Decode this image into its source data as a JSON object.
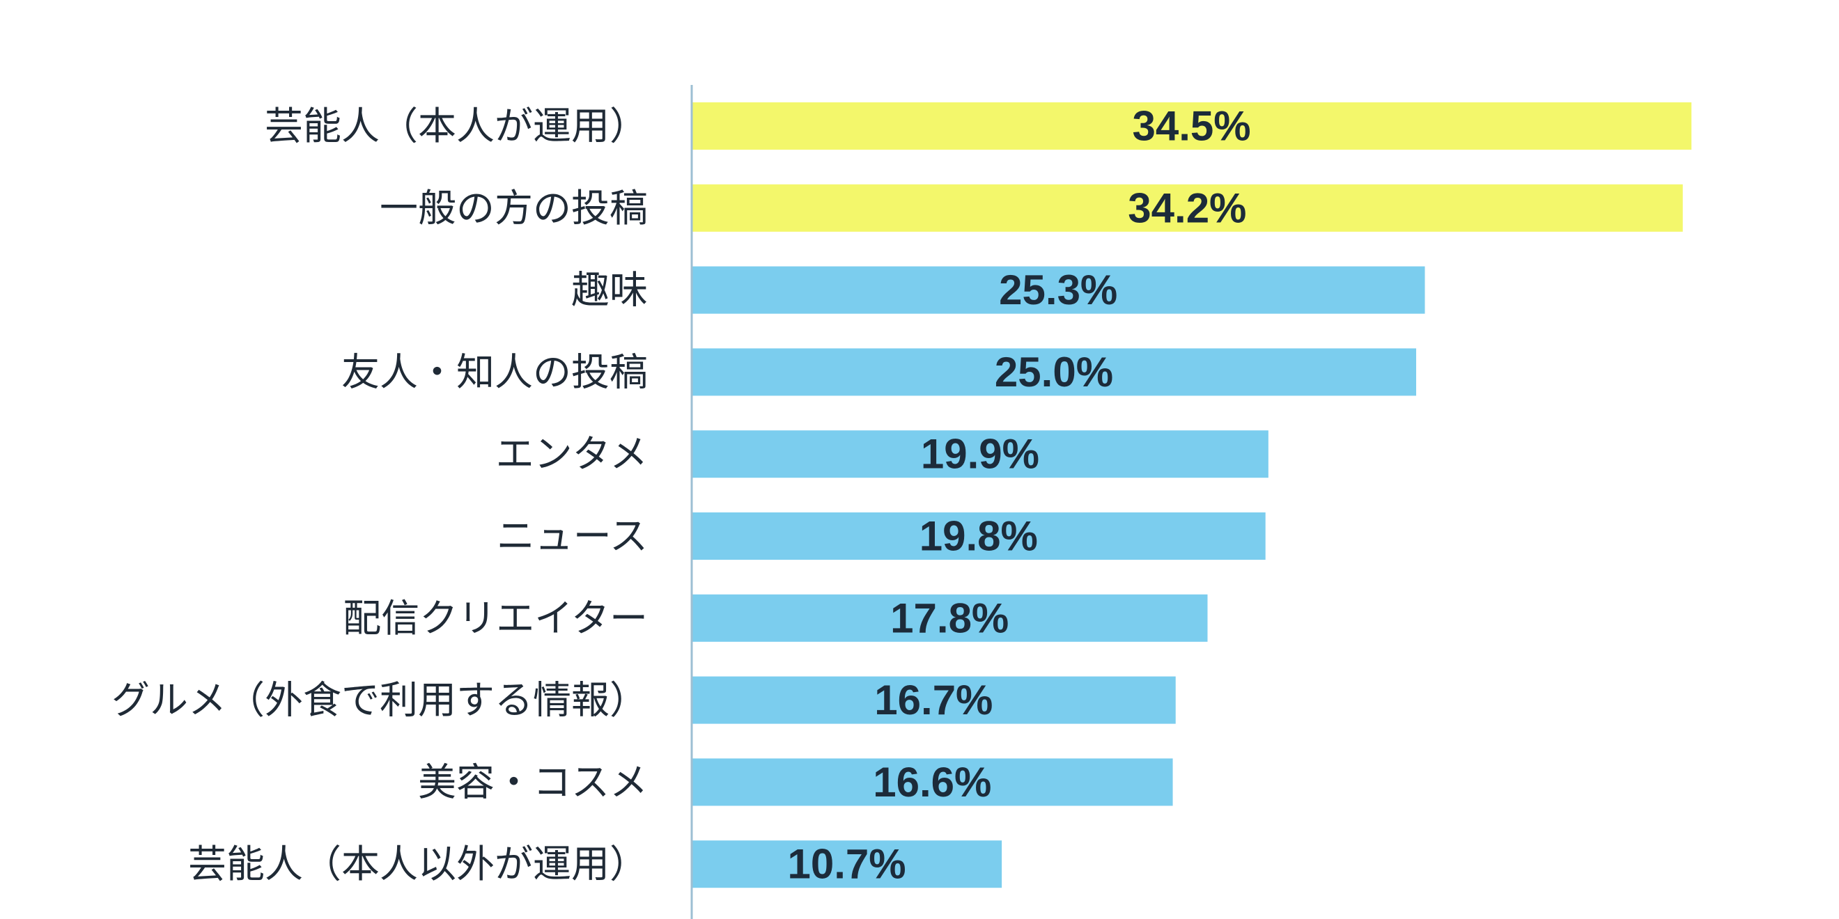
{
  "chart_data": {
    "type": "bar",
    "orientation": "horizontal",
    "title": "",
    "xlabel": "",
    "ylabel": "",
    "xlim": [
      0,
      35
    ],
    "grid": false,
    "legend": "none",
    "value_suffix": "%",
    "categories": [
      "芸能人（本人が運用）",
      "一般の方の投稿",
      "趣味",
      "友人・知人の投稿",
      "エンタメ",
      "ニュース",
      "配信クリエイター",
      "グルメ（外食で利用する情報）",
      "美容・コスメ",
      "芸能人（本人以外が運用）"
    ],
    "values": [
      34.5,
      34.2,
      25.3,
      25.0,
      19.9,
      19.8,
      17.8,
      16.7,
      16.6,
      10.7
    ],
    "value_labels": [
      "34.5%",
      "34.2%",
      "25.3%",
      "25.0%",
      "19.9%",
      "19.8%",
      "17.8%",
      "16.7%",
      "16.6%",
      "10.7%"
    ],
    "highlighted": [
      true,
      true,
      false,
      false,
      false,
      false,
      false,
      false,
      false,
      false
    ],
    "colors": {
      "highlight": "#f3f76b",
      "normal": "#7bcdee",
      "axis": "#9dbfd3",
      "value_text": "#1c2b3a",
      "label_text": "#1f2a36"
    }
  }
}
